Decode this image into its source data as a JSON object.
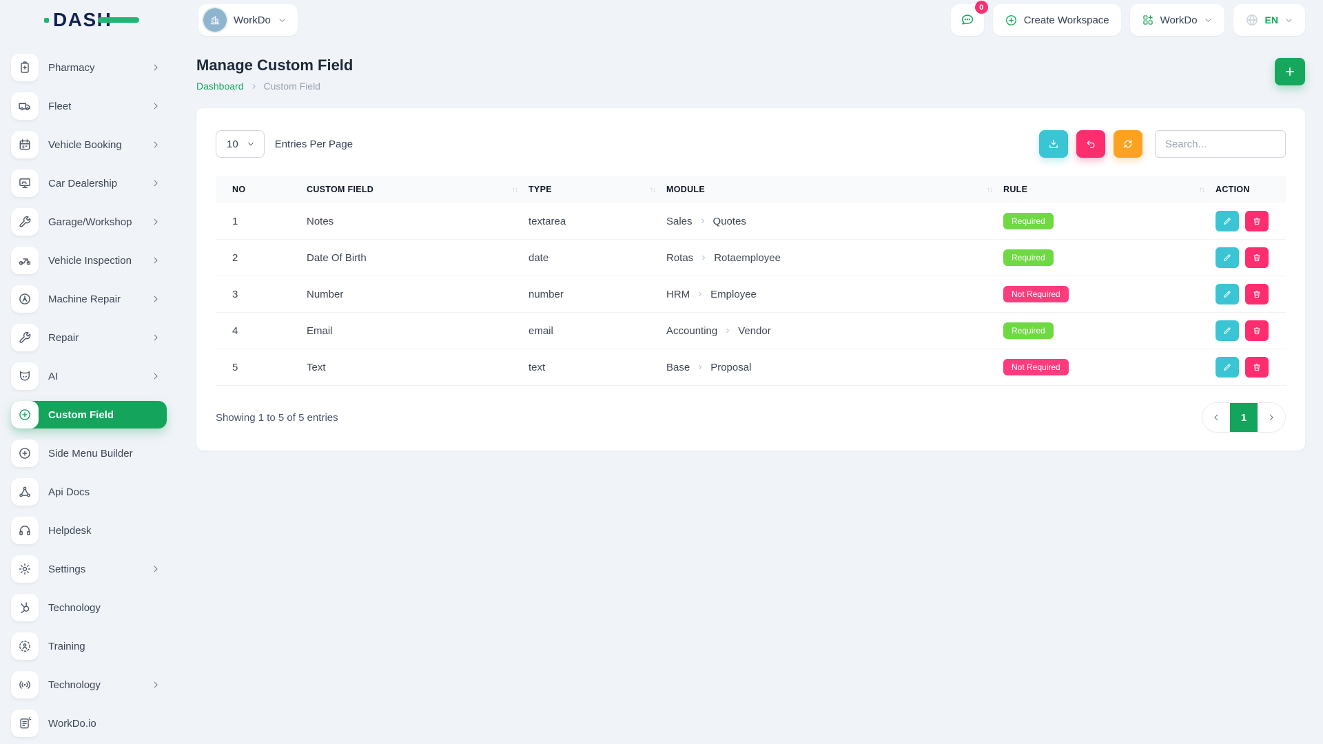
{
  "brand": {
    "name": "DASH"
  },
  "header": {
    "workspace_label": "WorkDo",
    "chat_badge": "0",
    "create_workspace_label": "Create Workspace",
    "app_menu_label": "WorkDo",
    "language_code": "EN"
  },
  "sidebar": {
    "items": [
      {
        "label": "Pharmacy",
        "icon": "clipboard-icon",
        "chevron": true,
        "active": false
      },
      {
        "label": "Fleet",
        "icon": "truck-icon",
        "chevron": true,
        "active": false
      },
      {
        "label": "Vehicle Booking",
        "icon": "calendar-icon",
        "chevron": true,
        "active": false
      },
      {
        "label": "Car Dealership",
        "icon": "monitor-icon",
        "chevron": true,
        "active": false
      },
      {
        "label": "Garage/Workshop",
        "icon": "wrench-icon",
        "chevron": true,
        "active": false
      },
      {
        "label": "Vehicle Inspection",
        "icon": "motorcycle-icon",
        "chevron": true,
        "active": false
      },
      {
        "label": "Machine Repair",
        "icon": "machine-icon",
        "chevron": true,
        "active": false
      },
      {
        "label": "Repair",
        "icon": "wrench-icon",
        "chevron": true,
        "active": false
      },
      {
        "label": "AI",
        "icon": "fox-icon",
        "chevron": true,
        "active": false
      },
      {
        "label": "Custom Field",
        "icon": "plus-circle-icon",
        "chevron": false,
        "active": true
      },
      {
        "label": "Side Menu Builder",
        "icon": "plus-circle-icon",
        "chevron": false,
        "active": false
      },
      {
        "label": "Api Docs",
        "icon": "share-nodes-icon",
        "chevron": false,
        "active": false
      },
      {
        "label": "Helpdesk",
        "icon": "headset-icon",
        "chevron": false,
        "active": false
      },
      {
        "label": "Settings",
        "icon": "gear-icon",
        "chevron": true,
        "active": false
      },
      {
        "label": "Technology",
        "icon": "sprocket-icon",
        "chevron": false,
        "active": false
      },
      {
        "label": "Training",
        "icon": "training-icon",
        "chevron": false,
        "active": false
      },
      {
        "label": "Technology",
        "icon": "broadcast-icon",
        "chevron": true,
        "active": false
      },
      {
        "label": "WorkDo.io",
        "icon": "note-icon",
        "chevron": false,
        "active": false
      }
    ]
  },
  "page": {
    "title": "Manage Custom Field",
    "breadcrumb_home": "Dashboard",
    "breadcrumb_current": "Custom Field"
  },
  "toolbar": {
    "entries_value": "10",
    "entries_label": "Entries Per Page",
    "search_placeholder": "Search...",
    "buttons": [
      "download-icon",
      "undo-icon",
      "refresh-icon"
    ]
  },
  "table": {
    "columns": [
      {
        "label": "NO",
        "sortable": false
      },
      {
        "label": "CUSTOM FIELD",
        "sortable": true
      },
      {
        "label": "TYPE",
        "sortable": true
      },
      {
        "label": "MODULE",
        "sortable": true
      },
      {
        "label": "RULE",
        "sortable": true
      },
      {
        "label": "ACTION",
        "sortable": false
      }
    ],
    "rows": [
      {
        "no": "1",
        "custom_field": "Notes",
        "type": "textarea",
        "module": [
          "Sales",
          "Quotes"
        ],
        "rule": "Required",
        "rule_state": "required"
      },
      {
        "no": "2",
        "custom_field": "Date Of Birth",
        "type": "date",
        "module": [
          "Rotas",
          "Rotaemployee"
        ],
        "rule": "Required",
        "rule_state": "required"
      },
      {
        "no": "3",
        "custom_field": "Number",
        "type": "number",
        "module": [
          "HRM",
          "Employee"
        ],
        "rule": "Not Required",
        "rule_state": "not-required"
      },
      {
        "no": "4",
        "custom_field": "Email",
        "type": "email",
        "module": [
          "Accounting",
          "Vendor"
        ],
        "rule": "Required",
        "rule_state": "required"
      },
      {
        "no": "5",
        "custom_field": "Text",
        "type": "text",
        "module": [
          "Base",
          "Proposal"
        ],
        "rule": "Not Required",
        "rule_state": "not-required"
      }
    ]
  },
  "footer": {
    "showing_text": "Showing 1 to 5 of 5 entries",
    "current_page": "1"
  },
  "colors": {
    "primary_green": "#14a45c",
    "badge_green": "#6fd943",
    "pink": "#fc2e6f",
    "teal": "#3ac4d4",
    "orange": "#fba321",
    "navy_logo": "#13224d",
    "background": "#f0f3f8"
  }
}
